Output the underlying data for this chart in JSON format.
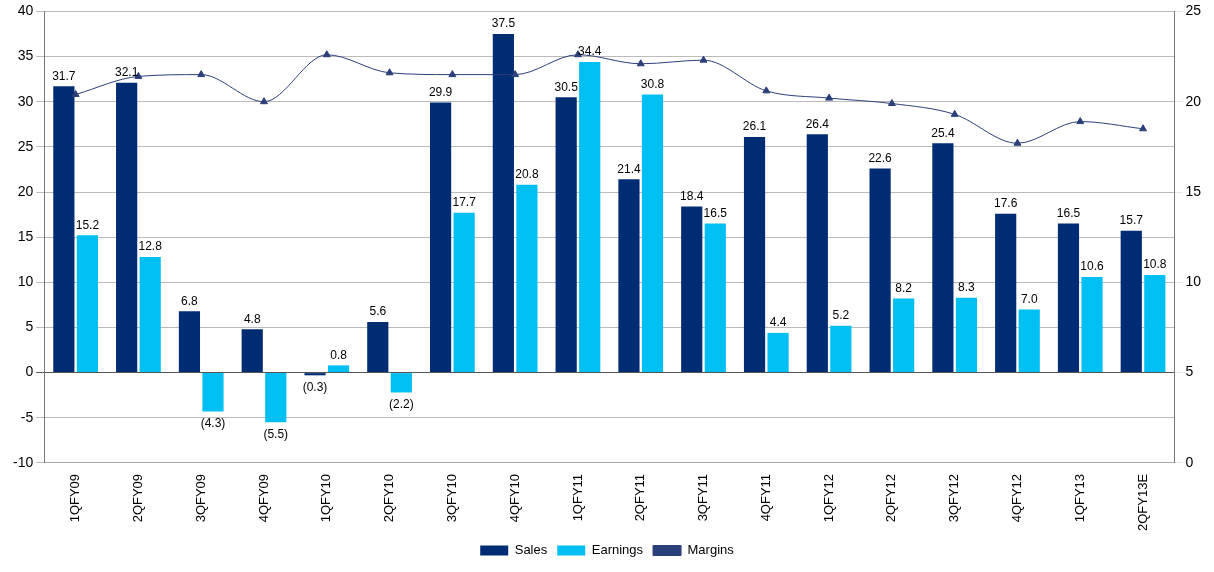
{
  "chart_data": {
    "type": "bar",
    "categories": [
      "1QFY09",
      "2QFY09",
      "3QFY09",
      "4QFY09",
      "1QFY10",
      "2QFY10",
      "3QFY10",
      "4QFY10",
      "1QFY11",
      "2QFY11",
      "3QFY11",
      "4QFY11",
      "1QFY12",
      "2QFY12",
      "3QFY12",
      "4QFY12",
      "1QFY13",
      "2QFY13E"
    ],
    "series": [
      {
        "name": "Sales",
        "color": "#002c73",
        "values": [
          31.7,
          32.1,
          6.8,
          4.8,
          -0.3,
          5.6,
          29.9,
          37.5,
          30.5,
          21.4,
          18.4,
          26.1,
          26.4,
          22.6,
          25.4,
          17.6,
          16.5,
          15.7
        ],
        "value_labels": [
          "31.7",
          "32.1",
          "6.8",
          "4.8",
          "(0.3)",
          "5.6",
          "29.9",
          "37.5",
          "30.5",
          "21.4",
          "18.4",
          "26.1",
          "26.4",
          "22.6",
          "25.4",
          "17.6",
          "16.5",
          "15.7"
        ]
      },
      {
        "name": "Earnings",
        "color": "#00bff3",
        "values": [
          15.2,
          12.8,
          -4.3,
          -5.5,
          0.8,
          -2.2,
          17.7,
          20.8,
          34.4,
          30.8,
          16.5,
          4.4,
          5.2,
          8.2,
          8.3,
          7.0,
          10.6,
          10.8
        ],
        "value_labels": [
          "15.2",
          "12.8",
          "(4.3)",
          "(5.5)",
          "0.8",
          "(2.2)",
          "17.7",
          "20.8",
          "34.4",
          "30.8",
          "16.5",
          "4.4",
          "5.2",
          "8.2",
          "8.3",
          "7.0",
          "10.6",
          "10.8"
        ]
      },
      {
        "name": "Margins",
        "type": "line",
        "axis": "y2",
        "color": "#2b3f7a",
        "marker": "triangle",
        "values": [
          20.4,
          21.4,
          21.5,
          20.0,
          22.6,
          21.6,
          21.5,
          21.5,
          22.6,
          22.1,
          22.3,
          20.6,
          20.2,
          19.9,
          19.3,
          17.7,
          18.9,
          18.5
        ]
      }
    ],
    "ylim": [
      -10,
      40
    ],
    "yticks": [
      -10,
      -5,
      0,
      5,
      10,
      15,
      20,
      25,
      30,
      35,
      40
    ],
    "y2lim": [
      0,
      25
    ],
    "y2ticks": [
      0,
      5,
      10,
      15,
      20,
      25
    ],
    "grid": "y",
    "legend": "bottom"
  }
}
